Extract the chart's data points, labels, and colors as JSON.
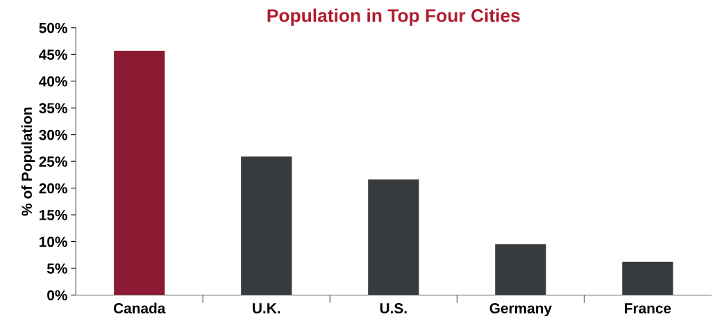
{
  "chart_data": {
    "type": "bar",
    "title": "Population in Top Four Cities",
    "ylabel": "% of Population",
    "categories": [
      "Canada",
      "U.K.",
      "U.S.",
      "Germany",
      "France"
    ],
    "values": [
      45.7,
      25.9,
      21.6,
      9.5,
      6.2
    ],
    "colors": [
      "#8b1a32",
      "#383b3e",
      "#383b3e",
      "#383b3e",
      "#383b3e"
    ],
    "ylim": [
      0,
      50
    ],
    "yticks": [
      {
        "value": 0,
        "label": "0%"
      },
      {
        "value": 5,
        "label": "5%"
      },
      {
        "value": 10,
        "label": "10%"
      },
      {
        "value": 15,
        "label": "15%"
      },
      {
        "value": 20,
        "label": "20%"
      },
      {
        "value": 25,
        "label": "25%"
      },
      {
        "value": 30,
        "label": "30%"
      },
      {
        "value": 35,
        "label": "35%"
      },
      {
        "value": 40,
        "label": "40%"
      },
      {
        "value": 45,
        "label": "45%"
      },
      {
        "value": 50,
        "label": "50%"
      }
    ],
    "grid": false,
    "legend": false
  }
}
